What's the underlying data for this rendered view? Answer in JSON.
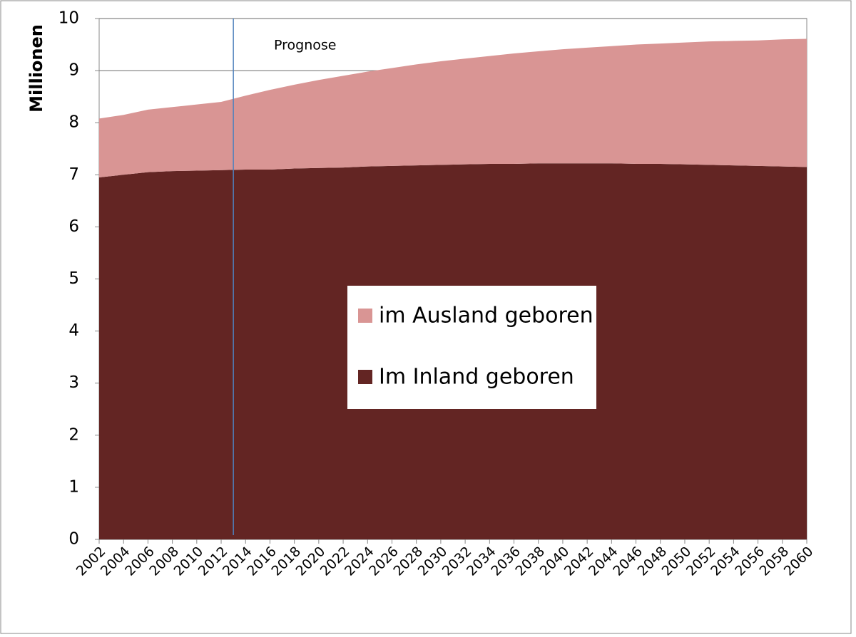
{
  "chart_data": {
    "type": "stacked-area",
    "y_label": "Millionen",
    "annotation": "Prognose",
    "forecast_line_x": 2013,
    "x": [
      2002,
      2004,
      2006,
      2008,
      2010,
      2012,
      2014,
      2016,
      2018,
      2020,
      2022,
      2024,
      2026,
      2028,
      2030,
      2032,
      2034,
      2036,
      2038,
      2040,
      2042,
      2044,
      2046,
      2048,
      2050,
      2052,
      2054,
      2056,
      2058,
      2060
    ],
    "series": [
      {
        "name": "Im Inland geboren",
        "color": "#632523",
        "values": [
          6.95,
          7.0,
          7.05,
          7.07,
          7.08,
          7.09,
          7.1,
          7.1,
          7.12,
          7.13,
          7.14,
          7.16,
          7.17,
          7.18,
          7.19,
          7.2,
          7.21,
          7.21,
          7.22,
          7.22,
          7.22,
          7.22,
          7.21,
          7.21,
          7.2,
          7.19,
          7.18,
          7.17,
          7.16,
          7.15
        ]
      },
      {
        "name": "im Ausland geboren",
        "color": "#d99594",
        "values": [
          1.13,
          1.15,
          1.2,
          1.23,
          1.27,
          1.31,
          1.42,
          1.53,
          1.61,
          1.69,
          1.76,
          1.82,
          1.88,
          1.94,
          1.99,
          2.03,
          2.07,
          2.12,
          2.15,
          2.19,
          2.22,
          2.25,
          2.29,
          2.31,
          2.34,
          2.37,
          2.39,
          2.41,
          2.44,
          2.46
        ]
      }
    ],
    "xlim": [
      2002,
      2060
    ],
    "xticks": [
      2002,
      2004,
      2006,
      2008,
      2010,
      2012,
      2014,
      2016,
      2018,
      2020,
      2022,
      2024,
      2026,
      2028,
      2030,
      2032,
      2034,
      2036,
      2038,
      2040,
      2042,
      2044,
      2046,
      2048,
      2050,
      2052,
      2054,
      2056,
      2058,
      2060
    ],
    "ylim": [
      0,
      10
    ],
    "yticks": [
      0,
      1,
      2,
      3,
      4,
      5,
      6,
      7,
      8,
      9,
      10
    ],
    "grid": true,
    "forecast_line_color": "#4f81bd"
  }
}
